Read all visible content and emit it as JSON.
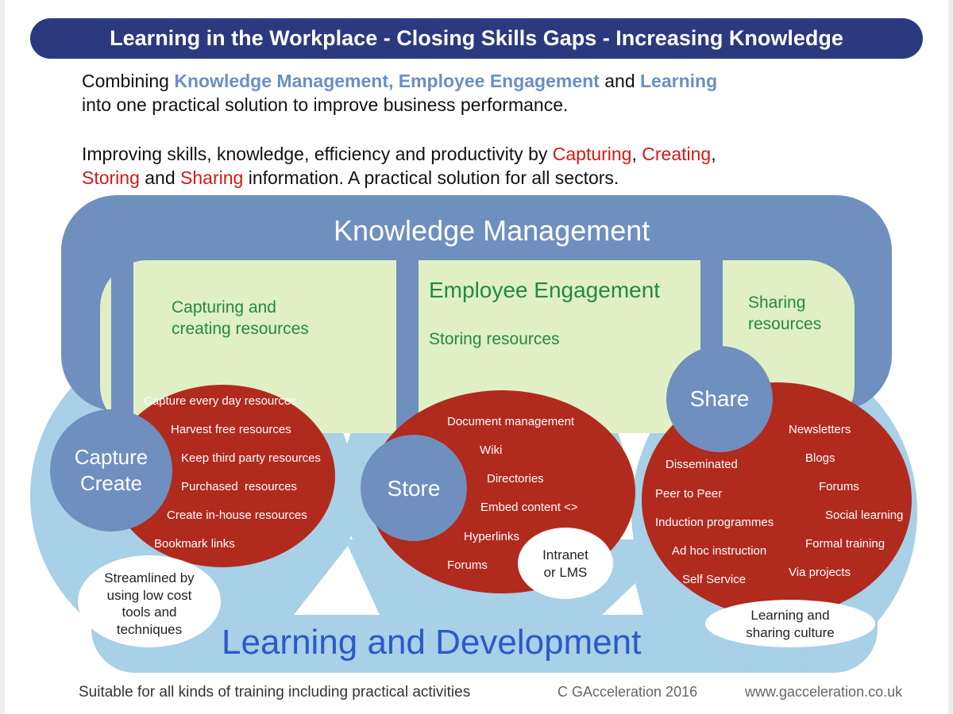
{
  "title": "Learning in the Workplace - Closing Skills Gaps - Increasing Knowledge",
  "intro": {
    "line1": {
      "pre": "Combining ",
      "km": "Knowledge Management, Employee Engagement",
      "mid": " and ",
      "learning": "Learning"
    },
    "line2": "into one practical solution to improve business performance.",
    "line3": {
      "pre": "Improving skills, knowledge, efficiency and productivity by ",
      "capturing": "Capturing",
      "comma1": ", ",
      "creating": "Creating",
      "comma2": ","
    },
    "line4": {
      "storing": "Storing",
      "and": " and ",
      "sharing": "Sharing",
      "post": " information. A practical solution for all sectors."
    }
  },
  "diagram": {
    "knowledge_management": "Knowledge Management",
    "employee_engagement": "Employee Engagement",
    "learning_development": "Learning and Development",
    "capture_heading": [
      "Capturing and",
      "creating resources"
    ],
    "storing_heading": "Storing resources",
    "sharing_heading": [
      "Sharing",
      "resources"
    ],
    "capture_circle": [
      "Capture",
      "Create"
    ],
    "store_circle": "Store",
    "share_circle": "Share",
    "capture_items": [
      "Capture every day resources",
      "Harvest free resources",
      "Keep third party resources",
      "Purchased  resources",
      "Create in-house resources",
      "Bookmark links"
    ],
    "store_items": [
      "Document management",
      "Wiki",
      "Directories",
      "Embed content <>",
      "Hyperlinks",
      "Forums"
    ],
    "share_left_items": [
      "Disseminated",
      "Peer to Peer",
      "Induction programmes",
      "Ad hoc instruction",
      "Self Service"
    ],
    "share_right_items": [
      "Newsletters",
      "Blogs",
      "Forums",
      "Social learning",
      "Formal training",
      "Via projects"
    ],
    "streamlined_note": [
      "Streamlined by",
      "using low cost",
      "tools and",
      "techniques"
    ],
    "intranet_note": [
      "Intranet",
      "or LMS"
    ],
    "culture_note": [
      "Learning and",
      "sharing culture"
    ]
  },
  "footer": {
    "suitable": "Suitable for all kinds of training including practical activities",
    "copyright": "C GAcceleration 2016",
    "website": "www.gacceleration.co.uk"
  },
  "colors": {
    "banner": "#2b3a7e",
    "km_blue": "#6f8fbf",
    "engagement_green": "#e0f0c4",
    "learning_light_blue": "#a8d0e6",
    "resource_red": "#b12a1e",
    "engagement_text": "#248a3c",
    "learning_text": "#2a59c9",
    "highlight_red": "#d21a16"
  }
}
